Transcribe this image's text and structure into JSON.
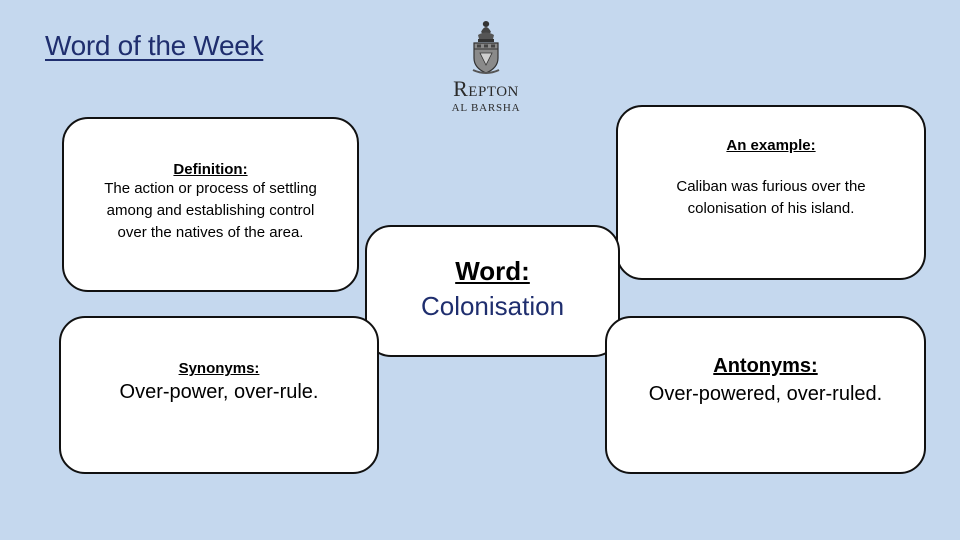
{
  "title": "Word of the Week",
  "logo": {
    "name": "Repton",
    "subtitle": "AL BARSHA"
  },
  "definition": {
    "heading": "Definition:",
    "line1": "The action or process of settling",
    "line2": "among and establishing control",
    "line3": "over the natives of the area."
  },
  "example": {
    "heading": "An example:",
    "line1": "Caliban was furious over the",
    "line2": "colonisation of his island."
  },
  "word": {
    "heading": "Word:",
    "value": "Colonisation"
  },
  "synonyms": {
    "heading": "Synonyms:",
    "value": "Over-power, over-rule."
  },
  "antonyms": {
    "heading": "Antonyms:",
    "value": "Over-powered, over-ruled."
  },
  "colors": {
    "background": "#c5d8ee",
    "title": "#1f2e6e",
    "card_border": "#111111",
    "word_value": "#1f2e6e"
  }
}
